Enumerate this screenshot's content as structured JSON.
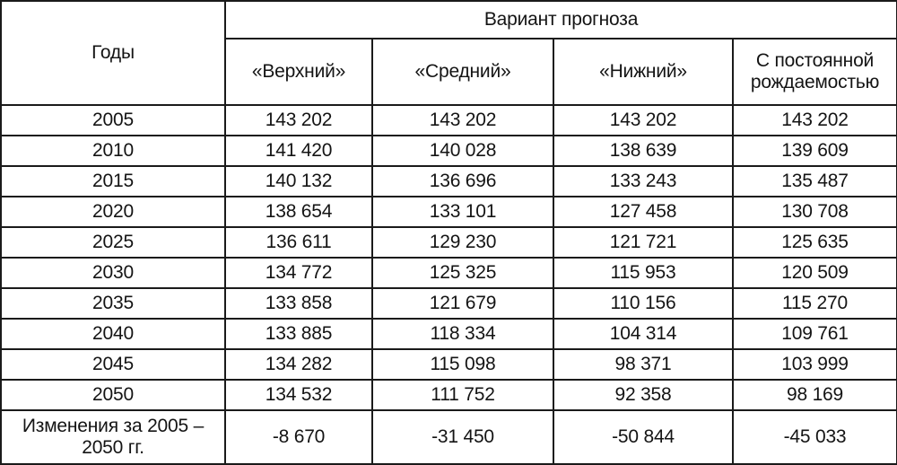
{
  "table": {
    "years_header": "Годы",
    "variant_header": "Вариант прогноза",
    "variants": [
      "«Верхний»",
      "«Средний»",
      "«Нижний»",
      "С постоянной рождаемостью"
    ],
    "rows": [
      {
        "year": "2005",
        "values": [
          "143 202",
          "143 202",
          "143 202",
          "143 202"
        ]
      },
      {
        "year": "2010",
        "values": [
          "141 420",
          "140 028",
          "138 639",
          "139 609"
        ]
      },
      {
        "year": "2015",
        "values": [
          "140 132",
          "136 696",
          "133 243",
          "135 487"
        ]
      },
      {
        "year": "2020",
        "values": [
          "138 654",
          "133 101",
          "127 458",
          "130 708"
        ]
      },
      {
        "year": "2025",
        "values": [
          "136 611",
          "129 230",
          "121 721",
          "125 635"
        ]
      },
      {
        "year": "2030",
        "values": [
          "134 772",
          "125 325",
          "115 953",
          "120 509"
        ]
      },
      {
        "year": "2035",
        "values": [
          "133 858",
          "121 679",
          "110 156",
          "115 270"
        ]
      },
      {
        "year": "2040",
        "values": [
          "133 885",
          "118 334",
          "104 314",
          "109 761"
        ]
      },
      {
        "year": "2045",
        "values": [
          "134 282",
          "115 098",
          "98 371",
          "103 999"
        ]
      },
      {
        "year": "2050",
        "values": [
          "134 532",
          "111 752",
          "92 358",
          "98 169"
        ]
      }
    ],
    "footer": {
      "label": "Изменения за 2005 – 2050 гг.",
      "values": [
        "-8 670",
        "-31 450",
        "-50 844",
        "-45 033"
      ]
    }
  }
}
